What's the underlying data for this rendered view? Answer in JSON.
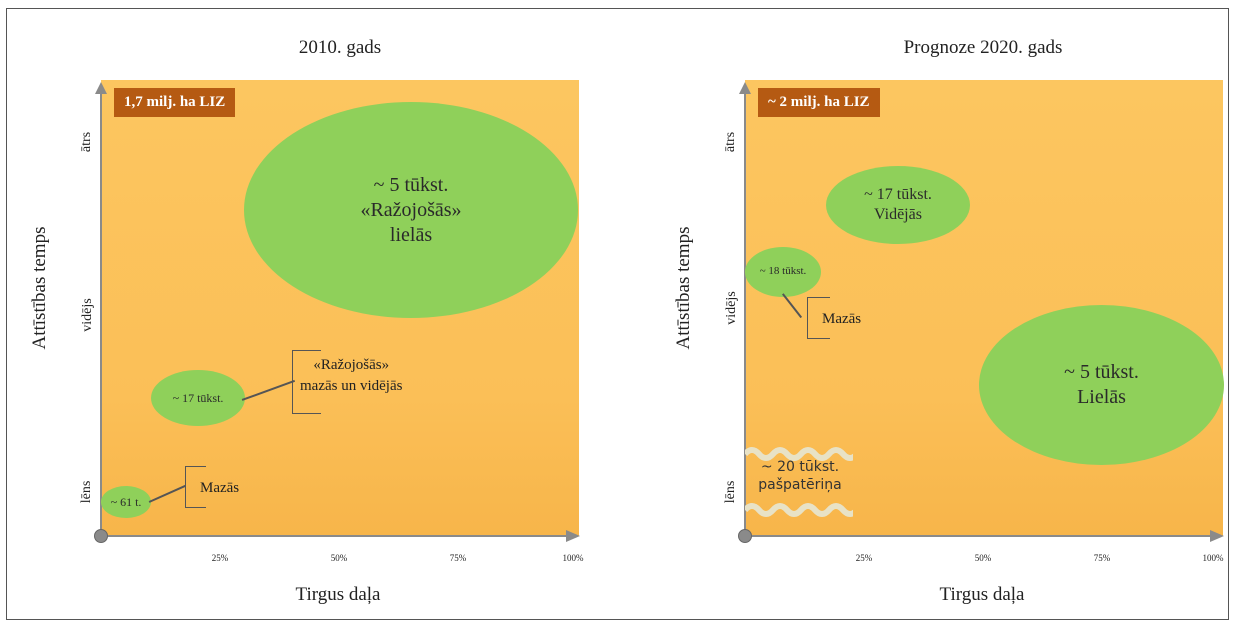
{
  "panels": [
    {
      "title": "2010. gads",
      "area_label": "1,7 milj. ha LIZ",
      "ylabel": "Attīstības temps",
      "xlabel": "Tirgus daļa",
      "yticks": [
        "ātrs",
        "vidējs",
        "lēns"
      ],
      "xticks": [
        "25%",
        "50%",
        "75%",
        "100%"
      ],
      "bubbles": [
        {
          "label": "~ 5 tūkst.\n«Ražojošās»\nlielās"
        },
        {
          "label": "~ 17 tūkst."
        },
        {
          "label": "~ 61 t."
        }
      ],
      "notes": [
        {
          "label": "«Ražojošās»\nmazās un vidējās"
        },
        {
          "label": "Mazās"
        }
      ]
    },
    {
      "title": "Prognoze 2020. gads",
      "area_label": "~ 2 milj. ha LIZ",
      "ylabel": "Attīstības temps",
      "xlabel": "Tirgus daļa",
      "yticks": [
        "ātrs",
        "vidējs",
        "lēns"
      ],
      "xticks": [
        "25%",
        "50%",
        "75%",
        "100%"
      ],
      "bubbles": [
        {
          "label": "~ 17 tūkst.\nVidējās"
        },
        {
          "label": "~ 18 tūkst."
        },
        {
          "label": "~ 5 tūkst.\nLielās"
        }
      ],
      "notes": [
        {
          "label": "Mazās"
        },
        {
          "label": "~ 20 tūkst.\npašpatēriņa"
        }
      ]
    }
  ],
  "colors": {
    "plot_bg": "#fcc660",
    "bubble": "#8fd05a",
    "area_label_bg": "#b55a12",
    "axis": "#8a8a8a"
  }
}
